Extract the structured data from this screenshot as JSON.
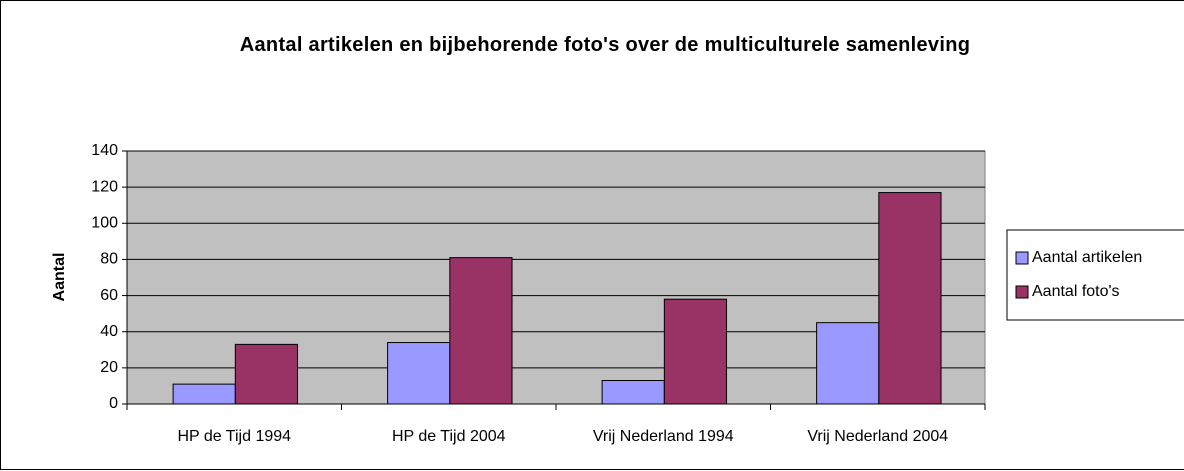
{
  "chart_data": {
    "type": "bar",
    "title": "Aantal artikelen en bijbehorende foto's over de multiculturele samenleving",
    "y_label": "Aantal",
    "categories": [
      "HP de Tijd 1994",
      "HP de Tijd 2004",
      "Vrij Nederland 1994",
      "Vrij Nederland 2004"
    ],
    "series": [
      {
        "name": "Aantal artikelen",
        "color": "#9999ff",
        "values": [
          11,
          34,
          13,
          45
        ]
      },
      {
        "name": "Aantal foto's",
        "color": "#993366",
        "values": [
          33,
          81,
          58,
          117
        ]
      }
    ],
    "ylim": [
      0,
      140
    ],
    "yticks": [
      0,
      20,
      40,
      60,
      80,
      100,
      120,
      140
    ],
    "grid": true,
    "legend": "right"
  }
}
